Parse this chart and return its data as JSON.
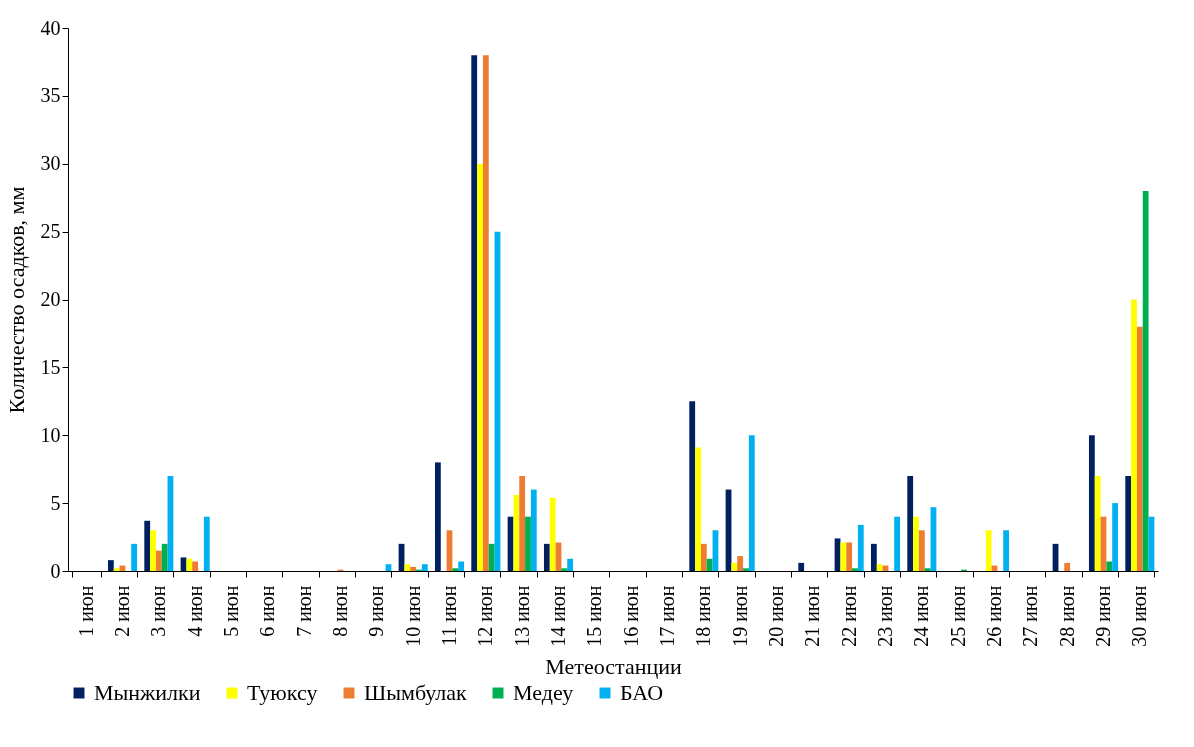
{
  "chart_data": {
    "type": "bar",
    "xlabel": "Метеостанции",
    "ylabel": "Количество осадков, мм",
    "categories": [
      "1 июн",
      "2 июн",
      "3 июн",
      "4 июн",
      "5 июн",
      "6 июн",
      "7 июн",
      "8 июн",
      "9 июн",
      "10 июн",
      "11 июн",
      "12 июн",
      "13 июн",
      "14 июн",
      "15 июн",
      "16 июн",
      "17 июн",
      "18 июн",
      "19 июн",
      "20 июн",
      "21 июн",
      "22 июн",
      "23 июн",
      "24 июн",
      "25 июн",
      "26 июн",
      "27 июн",
      "28 июн",
      "29 июн",
      "30 июн"
    ],
    "series": [
      {
        "name": "Мынжилки",
        "color": "#002060",
        "values": [
          null,
          0.8,
          3.7,
          1,
          null,
          null,
          null,
          null,
          null,
          2,
          8,
          38,
          4,
          2,
          null,
          null,
          null,
          12.5,
          6,
          null,
          0.6,
          2.4,
          2,
          7,
          null,
          null,
          null,
          2,
          10,
          7
        ]
      },
      {
        "name": "Туюксу",
        "color": "#ffff00",
        "values": [
          null,
          0.2,
          3,
          0.9,
          null,
          null,
          null,
          null,
          null,
          0.5,
          null,
          30,
          5.6,
          5.4,
          null,
          null,
          null,
          9.1,
          0.6,
          null,
          null,
          2.1,
          0.5,
          4,
          null,
          3,
          null,
          null,
          7,
          20
        ]
      },
      {
        "name": "Шымбулак",
        "color": "#ed7d31",
        "values": [
          null,
          0.4,
          1.5,
          0.7,
          null,
          null,
          null,
          0.1,
          null,
          0.3,
          3,
          38,
          7,
          2.1,
          null,
          null,
          null,
          2,
          1.1,
          null,
          null,
          2.1,
          0.4,
          3,
          null,
          0.4,
          null,
          0.6,
          4,
          18
        ]
      },
      {
        "name": "Медеу",
        "color": "#00b050",
        "values": [
          null,
          null,
          2,
          null,
          null,
          null,
          null,
          null,
          null,
          0.1,
          0.2,
          2,
          4,
          0.2,
          null,
          null,
          null,
          0.9,
          0.2,
          null,
          null,
          0.2,
          null,
          0.2,
          0.1,
          null,
          null,
          null,
          0.7,
          28
        ]
      },
      {
        "name": "БАО",
        "color": "#00b0f0",
        "values": [
          null,
          2,
          7,
          4,
          null,
          null,
          null,
          null,
          0.5,
          0.5,
          0.7,
          25,
          6,
          0.9,
          null,
          null,
          null,
          3,
          10,
          null,
          null,
          3.4,
          4,
          4.7,
          null,
          3,
          null,
          null,
          5,
          4
        ]
      }
    ],
    "ylim": [
      0,
      40
    ],
    "yticks": [
      0,
      5,
      10,
      15,
      20,
      25,
      30,
      35,
      40
    ],
    "grid": false,
    "legend": "bottom"
  }
}
